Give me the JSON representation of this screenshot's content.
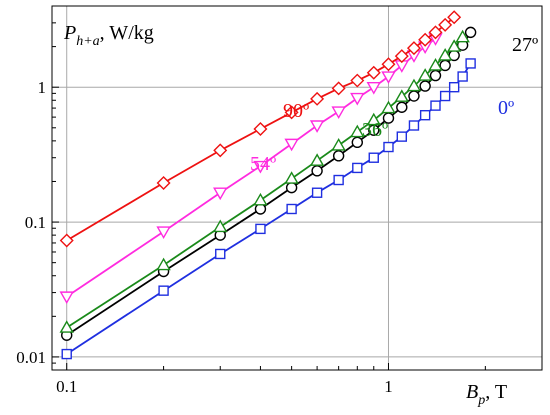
{
  "chart_data": {
    "type": "line",
    "xscale": "log",
    "yscale": "log",
    "xlim": [
      0.09,
      3.0
    ],
    "ylim": [
      0.008,
      4.0
    ],
    "grid": true,
    "y_axis_title": {
      "main": "P",
      "sub": "h+a",
      "rest": ", W/kg"
    },
    "x_axis_title": {
      "main": "B",
      "sub": "p",
      "rest": ", T"
    },
    "x_ticks": [
      {
        "value": 0.1,
        "label": "0.1"
      },
      {
        "value": 1,
        "label": "1"
      }
    ],
    "y_ticks": [
      {
        "value": 0.01,
        "label": "0.01"
      },
      {
        "value": 0.1,
        "label": "0.1"
      },
      {
        "value": 1,
        "label": "1"
      }
    ],
    "series": [
      {
        "name": "0º",
        "color": "#1f2fe0",
        "marker": "square",
        "x": [
          0.1,
          0.2,
          0.3,
          0.4,
          0.5,
          0.6,
          0.7,
          0.8,
          0.9,
          1.0,
          1.1,
          1.2,
          1.3,
          1.4,
          1.5,
          1.6,
          1.7,
          1.8
        ],
        "y": [
          0.0105,
          0.031,
          0.058,
          0.089,
          0.125,
          0.165,
          0.205,
          0.252,
          0.3,
          0.36,
          0.43,
          0.52,
          0.62,
          0.73,
          0.86,
          1.0,
          1.2,
          1.5
        ]
      },
      {
        "name": "27º",
        "color": "#000000",
        "marker": "circle",
        "x": [
          0.1,
          0.2,
          0.3,
          0.4,
          0.5,
          0.6,
          0.7,
          0.8,
          0.9,
          1.0,
          1.1,
          1.2,
          1.3,
          1.4,
          1.5,
          1.6,
          1.7,
          1.8
        ],
        "y": [
          0.0145,
          0.043,
          0.08,
          0.125,
          0.18,
          0.24,
          0.31,
          0.39,
          0.48,
          0.59,
          0.71,
          0.86,
          1.02,
          1.22,
          1.45,
          1.72,
          2.05,
          2.55
        ]
      },
      {
        "name": "36º",
        "color": "#1a8a1a",
        "marker": "triangle-up",
        "x": [
          0.1,
          0.2,
          0.3,
          0.4,
          0.5,
          0.6,
          0.7,
          0.8,
          0.9,
          1.0,
          1.1,
          1.2,
          1.3,
          1.4,
          1.5,
          1.6,
          1.7
        ],
        "y": [
          0.0165,
          0.048,
          0.092,
          0.145,
          0.21,
          0.285,
          0.37,
          0.465,
          0.57,
          0.7,
          0.85,
          1.02,
          1.22,
          1.45,
          1.72,
          2.0,
          2.35
        ]
      },
      {
        "name": "54º",
        "color": "#ff2bdf",
        "marker": "triangle-down",
        "x": [
          0.1,
          0.2,
          0.3,
          0.4,
          0.5,
          0.6,
          0.7,
          0.8,
          0.9,
          1.0,
          1.1,
          1.2,
          1.3,
          1.4
        ],
        "y": [
          0.028,
          0.085,
          0.165,
          0.26,
          0.38,
          0.52,
          0.66,
          0.83,
          1.0,
          1.2,
          1.45,
          1.72,
          2.0,
          2.3
        ]
      },
      {
        "name": "90º",
        "color": "#ee1111",
        "marker": "diamond",
        "x": [
          0.1,
          0.2,
          0.3,
          0.4,
          0.5,
          0.6,
          0.7,
          0.8,
          0.9,
          1.0,
          1.1,
          1.2,
          1.3,
          1.4,
          1.5,
          1.6
        ],
        "y": [
          0.073,
          0.195,
          0.34,
          0.49,
          0.65,
          0.82,
          0.98,
          1.12,
          1.28,
          1.48,
          1.7,
          1.95,
          2.25,
          2.55,
          2.9,
          3.3
        ]
      }
    ]
  }
}
